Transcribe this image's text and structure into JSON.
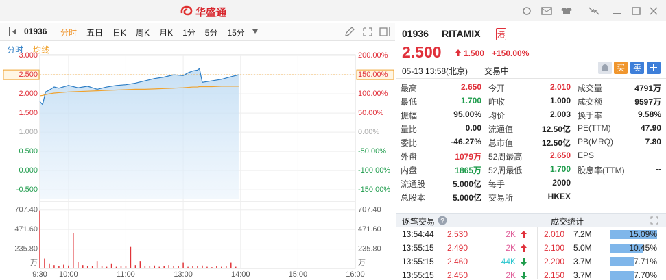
{
  "title_bar": {
    "logo": "华盛通"
  },
  "toolbar": {
    "code": "01936",
    "tabs": [
      "分时",
      "五日",
      "日K",
      "周K",
      "月K",
      "1分",
      "5分",
      "15分"
    ],
    "active_tab": 0
  },
  "chart_data": {
    "type": "line",
    "x": [
      "9:30",
      "9:33",
      "9:36",
      "9:40",
      "9:45",
      "9:50",
      "10:00",
      "10:10",
      "10:20",
      "10:30",
      "10:40",
      "10:50",
      "11:00",
      "11:10",
      "11:20",
      "11:30",
      "11:40",
      "11:50",
      "12:00",
      "13:05",
      "13:10",
      "13:15",
      "13:17",
      "13:20",
      "13:30",
      "13:40",
      "13:50",
      "13:58"
    ],
    "series": [
      {
        "name": "分时",
        "color": "#2b7cc4",
        "values": [
          1.8,
          1.72,
          2.05,
          2.1,
          2.18,
          2.15,
          2.22,
          2.16,
          2.2,
          2.12,
          2.18,
          2.22,
          2.24,
          2.28,
          2.34,
          2.4,
          2.44,
          2.5,
          2.48,
          2.55,
          2.6,
          2.62,
          2.66,
          2.3,
          2.34,
          2.38,
          2.45,
          2.5
        ]
      },
      {
        "name": "均线",
        "color": "#f0a22e",
        "values": [
          1.95,
          1.96,
          1.98,
          2.0,
          2.02,
          2.03,
          2.05,
          2.06,
          2.07,
          2.08,
          2.09,
          2.1,
          2.11,
          2.12,
          2.12,
          2.13,
          2.14,
          2.15,
          2.16,
          2.17,
          2.18,
          2.18,
          2.19,
          2.19,
          2.19,
          2.2,
          2.2,
          2.2
        ]
      }
    ],
    "ylim": [
      -0.73,
      3.02
    ],
    "yticks": [
      {
        "value": 3,
        "label": "3.000"
      },
      {
        "value": 2.5,
        "label": "2.500"
      },
      {
        "value": 2,
        "label": "2.000"
      },
      {
        "value": 1.5,
        "label": "1.500"
      },
      {
        "value": 1,
        "label": "1.000"
      },
      {
        "value": 0.5,
        "label": "0.500"
      },
      {
        "value": 0,
        "label": "0.000"
      },
      {
        "value": -0.5,
        "label": "-0.500"
      }
    ],
    "y2lim": [
      -173,
      202
    ],
    "y2ticks": [
      {
        "value": 200,
        "label": "200.00%"
      },
      {
        "value": 150,
        "label": "150.00%"
      },
      {
        "value": 100,
        "label": "100.00%"
      },
      {
        "value": 50,
        "label": "50.00%"
      },
      {
        "value": 0,
        "label": "0.00%"
      },
      {
        "value": -50,
        "label": "-50.00%"
      },
      {
        "value": -100,
        "label": "-100.00%"
      },
      {
        "value": -150,
        "label": "-150.00%"
      }
    ],
    "xticks": [
      "9:30",
      "10:00",
      "11:00",
      "13:00",
      "14:00",
      "15:00",
      "16:00"
    ],
    "grid": true,
    "volume": {
      "color": "#e0353a",
      "unit": "万",
      "ylim": [
        0,
        780
      ],
      "yticks": [
        {
          "value": 707.4,
          "label": "707.40"
        },
        {
          "value": 471.6,
          "label": "471.60"
        },
        {
          "value": 235.8,
          "label": "235.80"
        }
      ],
      "x": [
        "9:30",
        "9:35",
        "9:40",
        "9:45",
        "9:50",
        "9:55",
        "10:00",
        "10:05",
        "10:10",
        "10:15",
        "10:20",
        "10:25",
        "10:30",
        "10:35",
        "10:40",
        "10:45",
        "10:50",
        "10:55",
        "11:00",
        "11:05",
        "11:10",
        "11:15",
        "11:20",
        "11:25",
        "11:30",
        "11:35",
        "11:40",
        "11:45",
        "11:50",
        "11:55",
        "13:00",
        "13:05",
        "13:10",
        "13:15",
        "13:20",
        "13:25",
        "13:30",
        "13:35",
        "13:40",
        "13:45",
        "13:50",
        "13:55"
      ],
      "values": [
        700,
        120,
        60,
        40,
        30,
        45,
        35,
        430,
        80,
        40,
        30,
        25,
        90,
        30,
        20,
        60,
        20,
        25,
        30,
        260,
        40,
        90,
        30,
        25,
        35,
        20,
        25,
        40,
        30,
        25,
        70,
        20,
        30,
        25,
        35,
        20,
        15,
        25,
        20,
        30,
        70,
        20
      ]
    }
  },
  "quote": {
    "code": "01936",
    "name": "RITAMIX",
    "market": "港",
    "price": "2.500",
    "change": "1.500",
    "change_pct": "+150.00%",
    "time": "05-13 13:58(北京)",
    "status": "交易中",
    "buy": "买",
    "sell": "卖"
  },
  "stats": [
    [
      {
        "label": "最高",
        "value": "2.650",
        "tone": "up"
      },
      {
        "label": "今开",
        "value": "2.010",
        "tone": "up"
      },
      {
        "label": "成交量",
        "value": "4791万"
      }
    ],
    [
      {
        "label": "最低",
        "value": "1.700",
        "tone": "down"
      },
      {
        "label": "昨收",
        "value": "1.000"
      },
      {
        "label": "成交额",
        "value": "9597万"
      }
    ],
    [
      {
        "label": "振幅",
        "value": "95.00%"
      },
      {
        "label": "均价",
        "value": "2.003"
      },
      {
        "label": "换手率",
        "value": "9.58%"
      }
    ],
    [
      {
        "label": "量比",
        "value": "0.00"
      },
      {
        "label": "流通值",
        "value": "12.50亿"
      },
      {
        "label": "PE(TTM)",
        "value": "47.90"
      }
    ],
    [
      {
        "label": "委比",
        "value": "-46.27%"
      },
      {
        "label": "总市值",
        "value": "12.50亿"
      },
      {
        "label": "PB(MRQ)",
        "value": "7.80"
      }
    ],
    [
      {
        "label": "外盘",
        "value": "1079万",
        "tone": "up"
      },
      {
        "label": "52周最高",
        "value": "2.650",
        "tone": "up"
      },
      {
        "label": "EPS"
      }
    ],
    [
      {
        "label": "内盘",
        "value": "1865万",
        "tone": "down"
      },
      {
        "label": "52周最低",
        "value": "1.700",
        "tone": "down"
      },
      {
        "label": "股息率(TTM)",
        "value": "--"
      }
    ],
    [
      {
        "label": "流通股",
        "value": "5.000亿"
      },
      {
        "label": "每手",
        "value": "2000"
      }
    ],
    [
      {
        "label": "总股本",
        "value": "5.000亿"
      },
      {
        "label": "交易所",
        "value": "HKEX"
      }
    ]
  ],
  "trades": {
    "title": "逐笔交易",
    "rows": [
      {
        "time": "13:54:44",
        "price": "2.530",
        "volume": "2K",
        "volume_color": "#e0609a",
        "direction": "up"
      },
      {
        "time": "13:55:15",
        "price": "2.490",
        "volume": "2K",
        "volume_color": "#e0609a",
        "direction": "up"
      },
      {
        "time": "13:55:15",
        "price": "2.460",
        "volume": "44K",
        "volume_color": "#2cc7cf",
        "direction": "down"
      },
      {
        "time": "13:55:15",
        "price": "2.450",
        "volume": "2K",
        "volume_color": "#e0609a",
        "direction": "down"
      }
    ]
  },
  "distribution": {
    "title": "成交统计",
    "rows": [
      {
        "price": "2.010",
        "volume": "7.2M",
        "share": 15.09,
        "share_label": "15.09%"
      },
      {
        "price": "2.100",
        "volume": "5.0M",
        "share": 10.45,
        "share_label": "10.45%"
      },
      {
        "price": "2.200",
        "volume": "3.7M",
        "share": 7.71,
        "share_label": "7.71%"
      },
      {
        "price": "2.150",
        "volume": "3.7M",
        "share": 7.7,
        "share_label": "7.70%"
      }
    ]
  }
}
